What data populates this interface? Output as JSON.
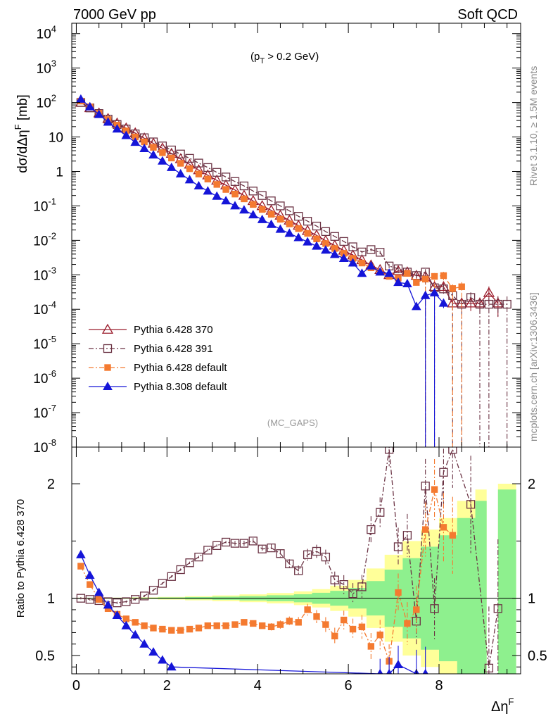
{
  "header": {
    "left": "7000 GeV pp",
    "right": "Soft QCD"
  },
  "side": {
    "top": "Rivet 3.1.10, ≥ 1.5M events",
    "bottom": "mcplots.cern.ch [arXiv:1306.3436]"
  },
  "annotation": {
    "cut": "(p",
    "cut_sub": "T",
    "cut_rest": " > 0.2 GeV)",
    "analysis": "(MC_GAPS)"
  },
  "axes": {
    "y_main_a": "dσ/dΔη",
    "y_main_sup": "F",
    "y_main_b": " [mb]",
    "y_ratio": "Ratio to Pythia 6.428 370",
    "x_a": "Δη",
    "x_sup": "F"
  },
  "colors": {
    "p370": "#9b1c2c",
    "p391": "#6b3344",
    "p6def": "#f47a30",
    "p8": "#1515d8",
    "band_green": "#8ef08e",
    "band_yellow": "#ffff99"
  },
  "chart_data": [
    {
      "type": "line",
      "panel": "main",
      "xlim": [
        -0.1,
        9.8
      ],
      "ylim": [
        1e-08,
        20000
      ],
      "yscale": "log",
      "legend_placement": "lower-left",
      "x_ticks": [
        0,
        2,
        4,
        6,
        8
      ],
      "y_ticks": [
        {
          "v": 1e-08,
          "t": "10",
          "e": "-8"
        },
        {
          "v": 1e-07,
          "t": "10",
          "e": "-7"
        },
        {
          "v": 1e-06,
          "t": "10",
          "e": "-6"
        },
        {
          "v": 1e-05,
          "t": "10",
          "e": "-5"
        },
        {
          "v": 0.0001,
          "t": "10",
          "e": "-4"
        },
        {
          "v": 0.001,
          "t": "10",
          "e": "-3"
        },
        {
          "v": 0.01,
          "t": "10",
          "e": "-2"
        },
        {
          "v": 0.1,
          "t": "10",
          "e": "-1"
        },
        {
          "v": 1,
          "t": "1",
          "e": ""
        },
        {
          "v": 10,
          "t": "10",
          "e": ""
        },
        {
          "v": 100,
          "t": "10",
          "e": "2"
        },
        {
          "v": 1000,
          "t": "10",
          "e": "3"
        },
        {
          "v": 10000,
          "t": "10",
          "e": "4"
        }
      ],
      "series": [
        {
          "name": "Pythia 6.428 370",
          "marker": "triangle-open",
          "style": "solid",
          "x": [
            0.1,
            0.3,
            0.5,
            0.7,
            0.9,
            1.1,
            1.3,
            1.5,
            1.7,
            1.9,
            2.1,
            2.3,
            2.5,
            2.7,
            2.9,
            3.1,
            3.3,
            3.5,
            3.7,
            3.9,
            4.1,
            4.3,
            4.5,
            4.7,
            4.9,
            5.1,
            5.3,
            5.5,
            5.7,
            5.9,
            6.1,
            6.3,
            6.5,
            6.7,
            6.9,
            7.1,
            7.3,
            7.5,
            7.7,
            7.9,
            8.1,
            8.3,
            8.5,
            8.7,
            8.9,
            9.1,
            9.3
          ],
          "y": [
            100,
            70,
            49,
            34,
            25,
            18,
            13,
            9.2,
            6.5,
            4.7,
            3.3,
            2.3,
            1.6,
            1.1,
            0.78,
            0.55,
            0.4,
            0.29,
            0.2,
            0.14,
            0.1,
            0.074,
            0.053,
            0.038,
            0.027,
            0.019,
            0.014,
            0.0098,
            0.0071,
            0.0051,
            0.0037,
            0.0027,
            0.0019,
            0.0014,
            0.001,
            0.0013,
            0.0012,
            0.00095,
            0.0009,
            0.00045,
            0.00045,
            0.00015,
            0.00015,
            0.00015,
            0.00015,
            0.0003,
            0.00015
          ]
        },
        {
          "name": "Pythia 6.428 391",
          "marker": "square-open",
          "style": "dashdot",
          "x": [
            0.1,
            0.3,
            0.5,
            0.7,
            0.9,
            1.1,
            1.3,
            1.5,
            1.7,
            1.9,
            2.1,
            2.3,
            2.5,
            2.7,
            2.9,
            3.1,
            3.3,
            3.5,
            3.7,
            3.9,
            4.1,
            4.3,
            4.5,
            4.7,
            4.9,
            5.1,
            5.3,
            5.5,
            5.7,
            5.9,
            6.1,
            6.3,
            6.5,
            6.7,
            6.9,
            7.1,
            7.3,
            7.5,
            7.7,
            7.9,
            8.1,
            8.3,
            8.5,
            8.7,
            8.9,
            9.1,
            9.3,
            9.5
          ],
          "y": [
            100,
            70,
            48,
            33,
            23,
            17,
            12.3,
            9.5,
            7.2,
            5.5,
            4.2,
            3.2,
            2.4,
            1.75,
            1.3,
            0.94,
            0.69,
            0.51,
            0.38,
            0.27,
            0.2,
            0.14,
            0.1,
            0.072,
            0.05,
            0.036,
            0.026,
            0.018,
            0.013,
            0.0093,
            0.0065,
            0.0046,
            0.0054,
            0.0045,
            0.0018,
            0.0015,
            0.0012,
            0.00095,
            0.0012,
            0.00042,
            0.00039,
            0.00025,
            0.00014,
            0.00022,
            0.00014,
            0.00014,
            0.00014,
            0.00014
          ]
        },
        {
          "name": "Pythia 6.428 default",
          "marker": "square-filled",
          "style": "dashdot",
          "x": [
            0.1,
            0.3,
            0.5,
            0.7,
            0.9,
            1.1,
            1.3,
            1.5,
            1.7,
            1.9,
            2.1,
            2.3,
            2.5,
            2.7,
            2.9,
            3.1,
            3.3,
            3.5,
            3.7,
            3.9,
            4.1,
            4.3,
            4.5,
            4.7,
            4.9,
            5.1,
            5.3,
            5.5,
            5.7,
            5.9,
            6.1,
            6.3,
            6.5,
            6.7,
            6.9,
            7.1,
            7.3,
            7.5,
            7.7,
            7.9,
            8.1,
            8.3,
            8.5
          ],
          "y": [
            110,
            75,
            49,
            32,
            22,
            15,
            10,
            7.2,
            5,
            3.5,
            2.45,
            1.72,
            1.2,
            0.84,
            0.6,
            0.42,
            0.3,
            0.22,
            0.16,
            0.11,
            0.079,
            0.057,
            0.041,
            0.03,
            0.022,
            0.016,
            0.011,
            0.0081,
            0.0058,
            0.0042,
            0.003,
            0.0022,
            0.0016,
            0.0012,
            0.0009,
            0.0008,
            0.0011,
            0.0006,
            0.00075,
            0.0009,
            0.00095,
            0.0004,
            0.00045
          ]
        },
        {
          "name": "Pythia 8.308 default",
          "marker": "triangle-filled",
          "style": "solid",
          "x": [
            0.1,
            0.3,
            0.5,
            0.7,
            0.9,
            1.1,
            1.3,
            1.5,
            1.7,
            1.9,
            2.1,
            2.3,
            2.5,
            2.7,
            2.9,
            3.1,
            3.3,
            3.5,
            3.7,
            3.9,
            4.1,
            4.3,
            4.5,
            4.7,
            4.9,
            5.1,
            5.3,
            5.5,
            5.7,
            5.9,
            6.1,
            6.3,
            6.5,
            6.7,
            6.9,
            7.1,
            7.3,
            7.5,
            7.7,
            7.9,
            8.1
          ],
          "y": [
            125,
            75,
            45,
            27,
            17,
            11,
            7,
            4.6,
            3,
            2,
            1.3,
            0.85,
            0.57,
            0.38,
            0.27,
            0.19,
            0.14,
            0.1,
            0.076,
            0.055,
            0.04,
            0.029,
            0.021,
            0.016,
            0.012,
            0.009,
            0.0068,
            0.0052,
            0.0039,
            0.003,
            0.0022,
            0.0011,
            0.0018,
            0.0012,
            0.0011,
            0.0006,
            0.00055,
            0.00012,
            0.00025,
            0.0003,
            0.00015
          ]
        }
      ]
    },
    {
      "type": "line",
      "panel": "ratio",
      "xlim": [
        -0.1,
        9.8
      ],
      "ylim": [
        0.34,
        2.32
      ],
      "reference": 1,
      "x_ticks": [
        0,
        2,
        4,
        6,
        8
      ],
      "y_ticks": [
        0.5,
        1,
        2
      ],
      "band_yellow": [
        [
          0,
          0.005
        ],
        [
          0.6,
          0.006
        ],
        [
          1.2,
          0.008
        ],
        [
          1.8,
          0.012
        ],
        [
          2.4,
          0.018
        ],
        [
          3,
          0.025
        ],
        [
          3.6,
          0.034
        ],
        [
          4.2,
          0.045
        ],
        [
          4.8,
          0.06
        ],
        [
          5.2,
          0.08
        ],
        [
          5.6,
          0.11
        ],
        [
          6,
          0.16
        ],
        [
          6.4,
          0.26
        ],
        [
          6.8,
          0.38
        ],
        [
          7.2,
          0.5
        ],
        [
          7.6,
          0.6
        ],
        [
          8,
          0.7
        ],
        [
          8.4,
          0.85
        ],
        [
          8.8,
          0.95
        ],
        [
          9.05,
          0
        ],
        [
          9.3,
          1
        ],
        [
          9.7,
          1
        ]
      ],
      "band_green": [
        [
          0,
          0.003
        ],
        [
          0.6,
          0.004
        ],
        [
          1.2,
          0.005
        ],
        [
          1.8,
          0.007
        ],
        [
          2.4,
          0.01
        ],
        [
          3,
          0.014
        ],
        [
          3.6,
          0.019
        ],
        [
          4.2,
          0.026
        ],
        [
          4.8,
          0.035
        ],
        [
          5.2,
          0.048
        ],
        [
          5.6,
          0.065
        ],
        [
          6,
          0.09
        ],
        [
          6.4,
          0.15
        ],
        [
          6.8,
          0.25
        ],
        [
          7.2,
          0.35
        ],
        [
          7.6,
          0.45
        ],
        [
          8,
          0.55
        ],
        [
          8.4,
          0.7
        ],
        [
          8.8,
          0.85
        ],
        [
          9.05,
          0
        ],
        [
          9.3,
          0.95
        ],
        [
          9.7,
          0.95
        ]
      ],
      "series": [
        {
          "name": "Pythia 6.428 391",
          "x": [
            0.1,
            0.3,
            0.5,
            0.7,
            0.9,
            1.1,
            1.3,
            1.5,
            1.7,
            1.9,
            2.1,
            2.3,
            2.5,
            2.7,
            2.9,
            3.1,
            3.3,
            3.5,
            3.7,
            3.9,
            4.1,
            4.3,
            4.5,
            4.7,
            4.9,
            5.1,
            5.3,
            5.5,
            5.7,
            5.9,
            6.1,
            6.3,
            6.5,
            6.7,
            6.9,
            7.1,
            7.3,
            7.5,
            7.7,
            7.9,
            8.1,
            8.3,
            8.7,
            9.1,
            9.3
          ],
          "y": [
            1.0,
            0.99,
            0.98,
            0.97,
            0.96,
            0.97,
            0.99,
            1.02,
            1.07,
            1.13,
            1.19,
            1.25,
            1.31,
            1.36,
            1.42,
            1.46,
            1.49,
            1.48,
            1.48,
            1.5,
            1.43,
            1.44,
            1.39,
            1.3,
            1.24,
            1.38,
            1.41,
            1.36,
            1.16,
            1.12,
            1.04,
            1.1,
            1.6,
            1.75,
            2.3,
            1.45,
            1.55,
            0.8,
            1.98,
            0.91,
            2.1,
            2.3,
            1.82,
            0.39,
            0.91
          ]
        },
        {
          "name": "Pythia 6.428 default",
          "x": [
            0.1,
            0.3,
            0.5,
            0.7,
            0.9,
            1.1,
            1.3,
            1.5,
            1.7,
            1.9,
            2.1,
            2.3,
            2.5,
            2.7,
            2.9,
            3.1,
            3.3,
            3.5,
            3.7,
            3.9,
            4.1,
            4.3,
            4.5,
            4.7,
            4.9,
            5.1,
            5.3,
            5.5,
            5.7,
            5.9,
            6.1,
            6.3,
            6.5,
            6.7,
            6.9,
            7.1,
            7.3,
            7.5,
            7.7,
            7.9,
            8.1,
            8.3
          ],
          "y": [
            1.28,
            1.12,
            0.99,
            0.91,
            0.86,
            0.82,
            0.79,
            0.76,
            0.74,
            0.73,
            0.72,
            0.72,
            0.73,
            0.74,
            0.76,
            0.76,
            0.76,
            0.77,
            0.79,
            0.78,
            0.76,
            0.75,
            0.77,
            0.8,
            0.79,
            0.9,
            0.84,
            0.77,
            0.67,
            0.81,
            0.73,
            0.75,
            0.58,
            0.68,
            0.45,
            1.05,
            0.78,
            0.9,
            1.6,
            1.95,
            1.62,
            1.55
          ]
        },
        {
          "name": "Pythia 8.308 default",
          "x": [
            0.1,
            0.3,
            0.5,
            0.7,
            0.9,
            1.1,
            1.3,
            1.5,
            1.7,
            1.9,
            2.1,
            6.7,
            6.9,
            7.1,
            7.5,
            7.7
          ],
          "y": [
            1.38,
            1.2,
            1.05,
            0.94,
            0.85,
            0.76,
            0.68,
            0.6,
            0.53,
            0.46,
            0.4,
            0.34,
            0.34,
            0.42,
            0.34,
            0.34
          ]
        }
      ]
    }
  ]
}
